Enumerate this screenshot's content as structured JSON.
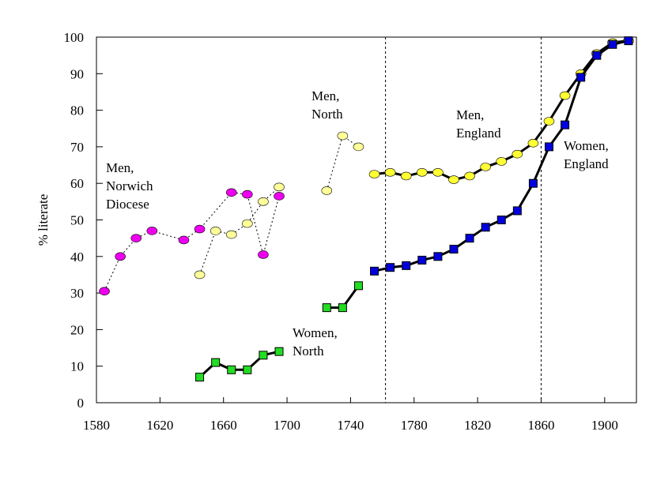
{
  "chart_data": {
    "type": "line",
    "ylabel": "% literate",
    "xlabel": "",
    "xlim": [
      1580,
      1920
    ],
    "ylim": [
      0,
      100
    ],
    "xticks": [
      1580,
      1620,
      1660,
      1700,
      1740,
      1780,
      1820,
      1860,
      1900
    ],
    "yticks": [
      0,
      10,
      20,
      30,
      40,
      50,
      60,
      70,
      80,
      90,
      100
    ],
    "grid": false,
    "vlines": [
      1762,
      1860
    ],
    "series": [
      {
        "name": "Men, Norwich Diocese",
        "color": "#ee00ee",
        "marker": "ellipse",
        "line": "dotted",
        "points": [
          [
            1585,
            30.5
          ],
          [
            1595,
            40
          ],
          [
            1605,
            45
          ],
          [
            1615,
            47
          ],
          [
            1635,
            44.5
          ],
          [
            1645,
            47.5
          ],
          [
            1665,
            57.5
          ],
          [
            1675,
            57
          ],
          [
            1685,
            40.5
          ],
          [
            1695,
            56.5
          ]
        ]
      },
      {
        "name": "Men, North",
        "color": "#ffff99",
        "marker": "ellipse",
        "line": "dotted",
        "points": [
          [
            1645,
            35
          ],
          [
            1655,
            47
          ],
          [
            1665,
            46
          ],
          [
            1675,
            49
          ],
          [
            1685,
            55
          ],
          [
            1695,
            59
          ],
          null,
          [
            1725,
            58
          ],
          [
            1735,
            73
          ],
          [
            1745,
            70
          ]
        ]
      },
      {
        "name": "Men, England",
        "color": "#ffff33",
        "marker": "ellipse",
        "line": "solid",
        "points": [
          [
            1755,
            62.5
          ],
          [
            1765,
            63
          ],
          [
            1775,
            62
          ],
          [
            1785,
            63
          ],
          [
            1795,
            63
          ],
          [
            1805,
            61
          ],
          [
            1815,
            62
          ],
          [
            1825,
            64.5
          ],
          [
            1835,
            66
          ],
          [
            1845,
            68
          ],
          [
            1855,
            71
          ],
          [
            1865,
            77
          ],
          [
            1875,
            84
          ],
          [
            1885,
            90
          ],
          [
            1895,
            95.5
          ],
          [
            1905,
            98.5
          ],
          [
            1915,
            99
          ]
        ]
      },
      {
        "name": "Women, North",
        "color": "#22dd22",
        "marker": "square",
        "line": "solid",
        "points": [
          [
            1645,
            7
          ],
          [
            1655,
            11
          ],
          [
            1665,
            9
          ],
          [
            1675,
            9
          ],
          [
            1685,
            13
          ],
          [
            1695,
            14
          ],
          null,
          [
            1725,
            26
          ],
          [
            1735,
            26
          ],
          [
            1745,
            32
          ]
        ]
      },
      {
        "name": "Women, England",
        "color": "#0000dd",
        "marker": "square",
        "line": "solid",
        "points": [
          [
            1755,
            36
          ],
          [
            1765,
            37
          ],
          [
            1775,
            37.5
          ],
          [
            1785,
            39
          ],
          [
            1795,
            40
          ],
          [
            1805,
            42
          ],
          [
            1815,
            45
          ],
          [
            1825,
            48
          ],
          [
            1835,
            50
          ],
          [
            1845,
            52.5
          ],
          [
            1855,
            60
          ],
          [
            1865,
            70
          ],
          [
            1875,
            76
          ],
          [
            1885,
            89
          ],
          [
            1895,
            95
          ],
          [
            1905,
            98
          ],
          [
            1915,
            99
          ]
        ]
      }
    ],
    "annotations": [
      {
        "lines": [
          "Men,",
          "Norwich",
          "Diocese"
        ]
      },
      {
        "lines": [
          "Men,",
          "North"
        ]
      },
      {
        "lines": [
          "Men,",
          "England"
        ]
      },
      {
        "lines": [
          "Women,",
          "England"
        ]
      },
      {
        "lines": [
          "Women,",
          "North"
        ]
      }
    ]
  }
}
